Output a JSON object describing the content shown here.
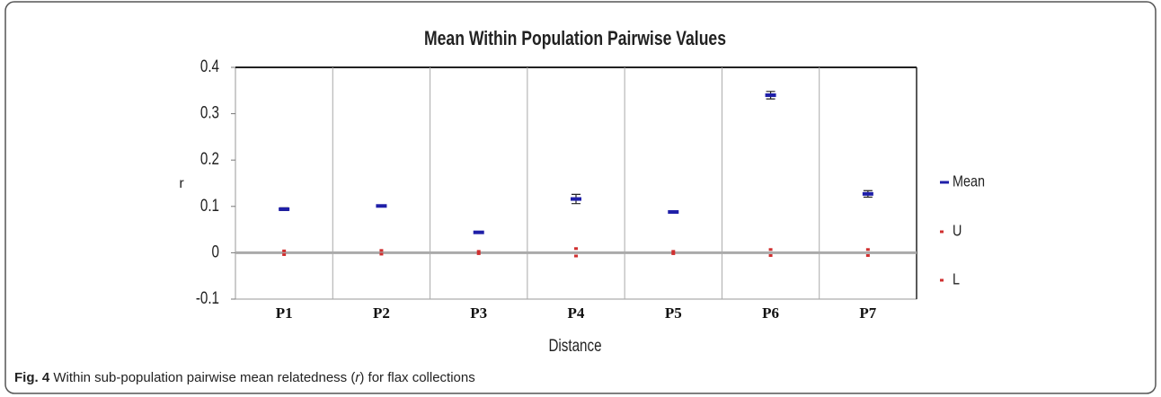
{
  "chart_data": {
    "type": "dot-error",
    "title": "Mean Within Population Pairwise Values",
    "x_label": "Distance",
    "y_label": "r",
    "categories": [
      "P1",
      "P2",
      "P3",
      "P4",
      "P5",
      "P6",
      "P7"
    ],
    "series": [
      {
        "name": "Mean",
        "color": "#1f1fa8",
        "values": [
          0.094,
          0.101,
          0.044,
          0.116,
          0.088,
          0.34,
          0.127
        ],
        "errors": [
          0.003,
          0.002,
          0.002,
          0.01,
          0.002,
          0.008,
          0.007
        ]
      },
      {
        "name": "U",
        "color": "#d03030",
        "values": [
          0.004,
          0.005,
          0.003,
          0.009,
          0.003,
          0.007,
          0.007
        ]
      },
      {
        "name": "L",
        "color": "#d03030",
        "values": [
          -0.004,
          -0.003,
          -0.002,
          -0.007,
          -0.002,
          -0.006,
          -0.006
        ]
      }
    ],
    "ylim": [
      -0.1,
      0.4
    ],
    "yticks": [
      -0.1,
      0,
      0.1,
      0.2,
      0.3,
      0.4
    ],
    "legend": "right"
  },
  "caption": {
    "label": "Fig. 4",
    "text_before": "Within sub-population pairwise mean relatedness (",
    "symbol": "r",
    "text_after": ") for flax collections"
  }
}
